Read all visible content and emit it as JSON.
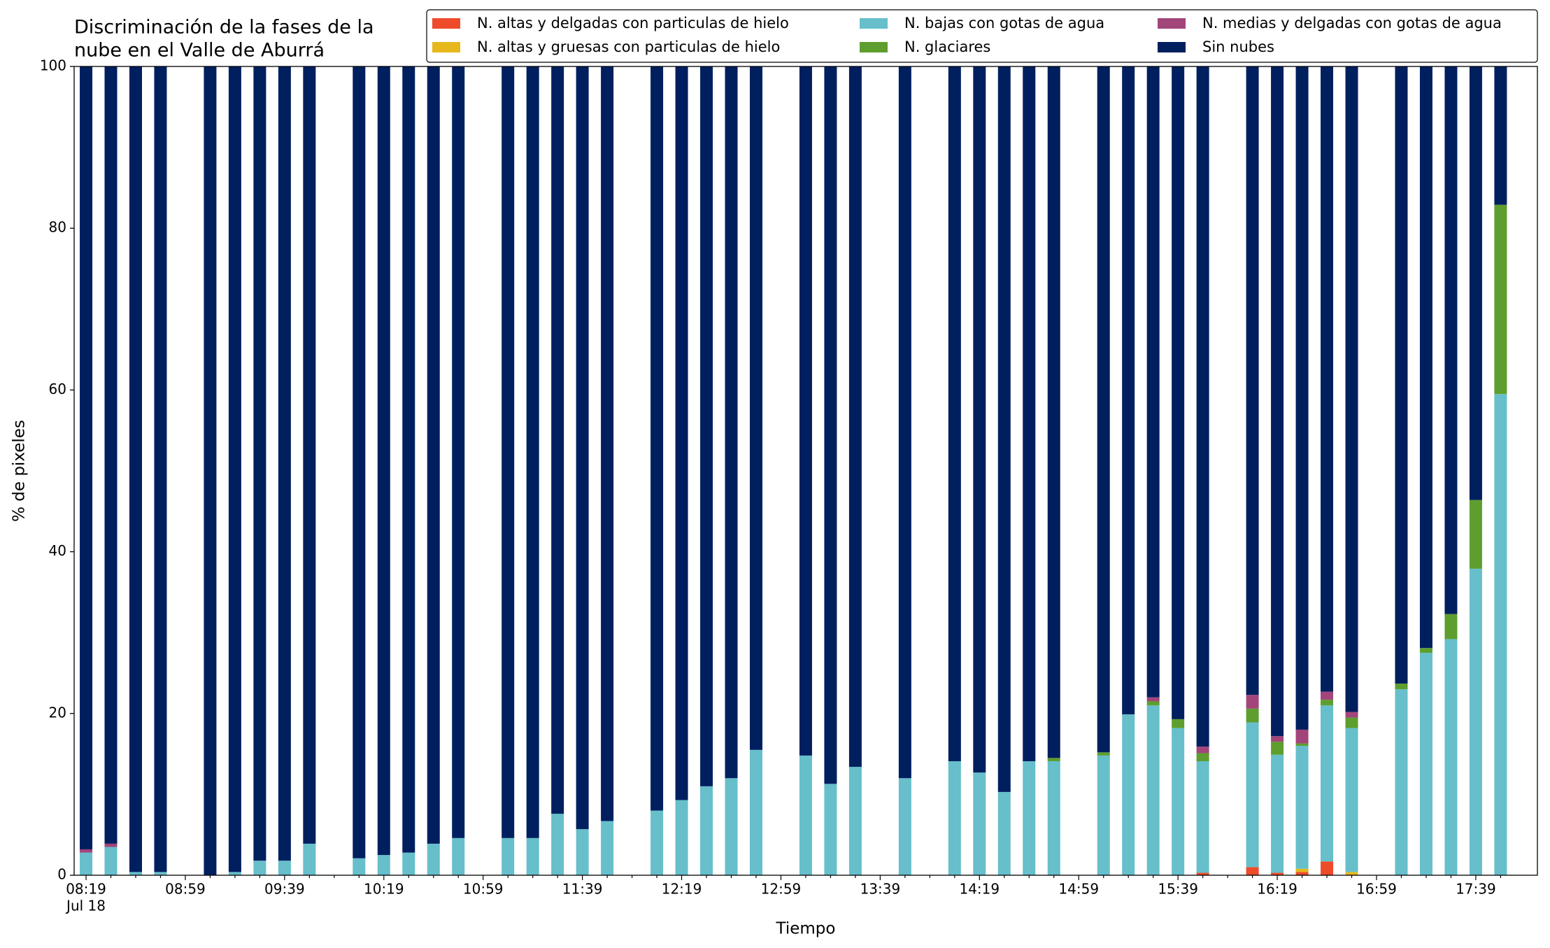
{
  "chart_data": {
    "type": "stacked_bar",
    "title": [
      "Discriminación de la fases de la",
      "nube en el Valle de Aburrá"
    ],
    "xlabel": "Tiempo",
    "ylabel": "% de pixeles",
    "date_label": "Jul 18",
    "categories": [
      "08:19",
      null,
      null,
      null,
      "08:59",
      null,
      null,
      null,
      "09:39",
      null,
      null,
      null,
      "10:19",
      null,
      null,
      null,
      "10:59",
      null,
      null,
      null,
      "11:39",
      null,
      null,
      null,
      "12:19",
      null,
      null,
      null,
      "12:59",
      null,
      null,
      null,
      "13:39",
      null,
      null,
      null,
      "14:19",
      null,
      null,
      null,
      "14:59",
      null,
      null,
      null,
      "15:39",
      null,
      null,
      null,
      "16:19",
      null,
      null,
      null,
      "16:59",
      null,
      null,
      null,
      "17:39",
      null
    ],
    "series": [
      {
        "name": "N. altas y delgadas con particulas de hielo",
        "color": "#ee4b2b",
        "values": [
          0,
          0,
          0,
          0,
          null,
          0,
          0,
          0,
          0,
          0,
          null,
          0,
          0,
          0,
          0,
          0,
          null,
          0,
          0,
          0,
          0,
          0,
          null,
          0,
          0,
          0,
          0,
          0,
          null,
          0,
          0,
          0,
          null,
          0,
          null,
          0,
          0,
          0,
          0,
          0,
          null,
          0,
          0,
          0,
          0,
          0.3,
          null,
          1.0,
          0.3,
          0.4,
          1.7,
          0,
          null,
          0,
          0,
          0,
          0,
          0
        ]
      },
      {
        "name": "N. altas y gruesas con particulas de hielo",
        "color": "#e6b81c",
        "values": [
          0,
          0,
          0,
          0,
          null,
          0,
          0,
          0,
          0,
          0,
          null,
          0,
          0,
          0,
          0,
          0,
          null,
          0,
          0,
          0,
          0,
          0,
          null,
          0,
          0,
          0,
          0,
          0,
          null,
          0,
          0,
          0,
          null,
          0,
          null,
          0,
          0,
          0,
          0,
          0,
          null,
          0,
          0,
          0,
          0,
          0,
          null,
          0,
          0,
          0.4,
          0,
          0.4,
          null,
          0,
          0,
          0,
          0,
          0
        ]
      },
      {
        "name": "N. bajas con gotas de agua",
        "color": "#66bfca",
        "values": [
          2.8,
          3.5,
          0.4,
          0.4,
          null,
          0,
          0.4,
          1.8,
          1.8,
          3.9,
          null,
          2.1,
          2.5,
          2.8,
          3.9,
          4.6,
          null,
          4.6,
          4.6,
          7.6,
          5.7,
          6.7,
          null,
          8.0,
          9.3,
          11.0,
          12.0,
          15.5,
          null,
          14.8,
          11.3,
          13.4,
          null,
          12.0,
          null,
          14.1,
          12.7,
          10.3,
          14.1,
          14.1,
          null,
          14.8,
          19.9,
          21.0,
          18.2,
          13.8,
          null,
          17.9,
          14.6,
          15.2,
          19.3,
          17.8,
          null,
          23.0,
          27.5,
          29.2,
          37.9,
          59.5
        ]
      },
      {
        "name": "N. glaciares",
        "color": "#5e9e2e",
        "values": [
          0,
          0,
          0,
          0,
          null,
          0,
          0,
          0,
          0,
          0,
          null,
          0,
          0,
          0,
          0,
          0,
          null,
          0,
          0,
          0,
          0,
          0,
          null,
          0,
          0,
          0,
          0,
          0,
          null,
          0,
          0,
          0,
          null,
          0,
          null,
          0,
          0,
          0,
          0,
          0.4,
          null,
          0.4,
          0,
          0.5,
          1.1,
          1.0,
          null,
          1.7,
          1.6,
          0.3,
          0.7,
          1.3,
          null,
          0.7,
          0.6,
          3.1,
          8.5,
          23.4
        ]
      },
      {
        "name": "N. medias y delgadas con gotas de agua",
        "color": "#a2457a",
        "values": [
          0.4,
          0.4,
          0,
          0,
          null,
          0,
          0,
          0,
          0,
          0,
          null,
          0,
          0,
          0,
          0,
          0,
          null,
          0,
          0,
          0,
          0,
          0,
          null,
          0,
          0,
          0,
          0,
          0,
          null,
          0,
          0,
          0,
          null,
          0,
          null,
          0,
          0,
          0,
          0,
          0,
          null,
          0,
          0,
          0.5,
          0,
          0.8,
          null,
          1.7,
          0.7,
          1.7,
          1.0,
          0.7,
          null,
          0,
          0,
          0,
          0,
          0
        ]
      },
      {
        "name": "Sin nubes",
        "color": "#001f5f",
        "values": [
          96.8,
          96.1,
          99.6,
          99.6,
          null,
          100,
          99.6,
          98.2,
          98.2,
          96.1,
          null,
          97.9,
          97.5,
          97.2,
          96.1,
          95.4,
          null,
          95.4,
          95.4,
          92.4,
          94.3,
          93.3,
          null,
          92.0,
          90.7,
          89.0,
          88.0,
          84.5,
          null,
          85.2,
          88.7,
          86.6,
          null,
          88.0,
          null,
          85.9,
          87.3,
          89.7,
          85.9,
          85.5,
          null,
          84.8,
          80.1,
          78.0,
          80.7,
          84.1,
          null,
          77.7,
          82.8,
          82.0,
          77.3,
          79.8,
          null,
          76.3,
          71.9,
          67.7,
          53.6,
          17.1
        ]
      }
    ],
    "ylim": [
      0,
      100
    ],
    "yticks": [
      0,
      20,
      40,
      60,
      80,
      100
    ],
    "grid": false,
    "legend": "upper right"
  }
}
